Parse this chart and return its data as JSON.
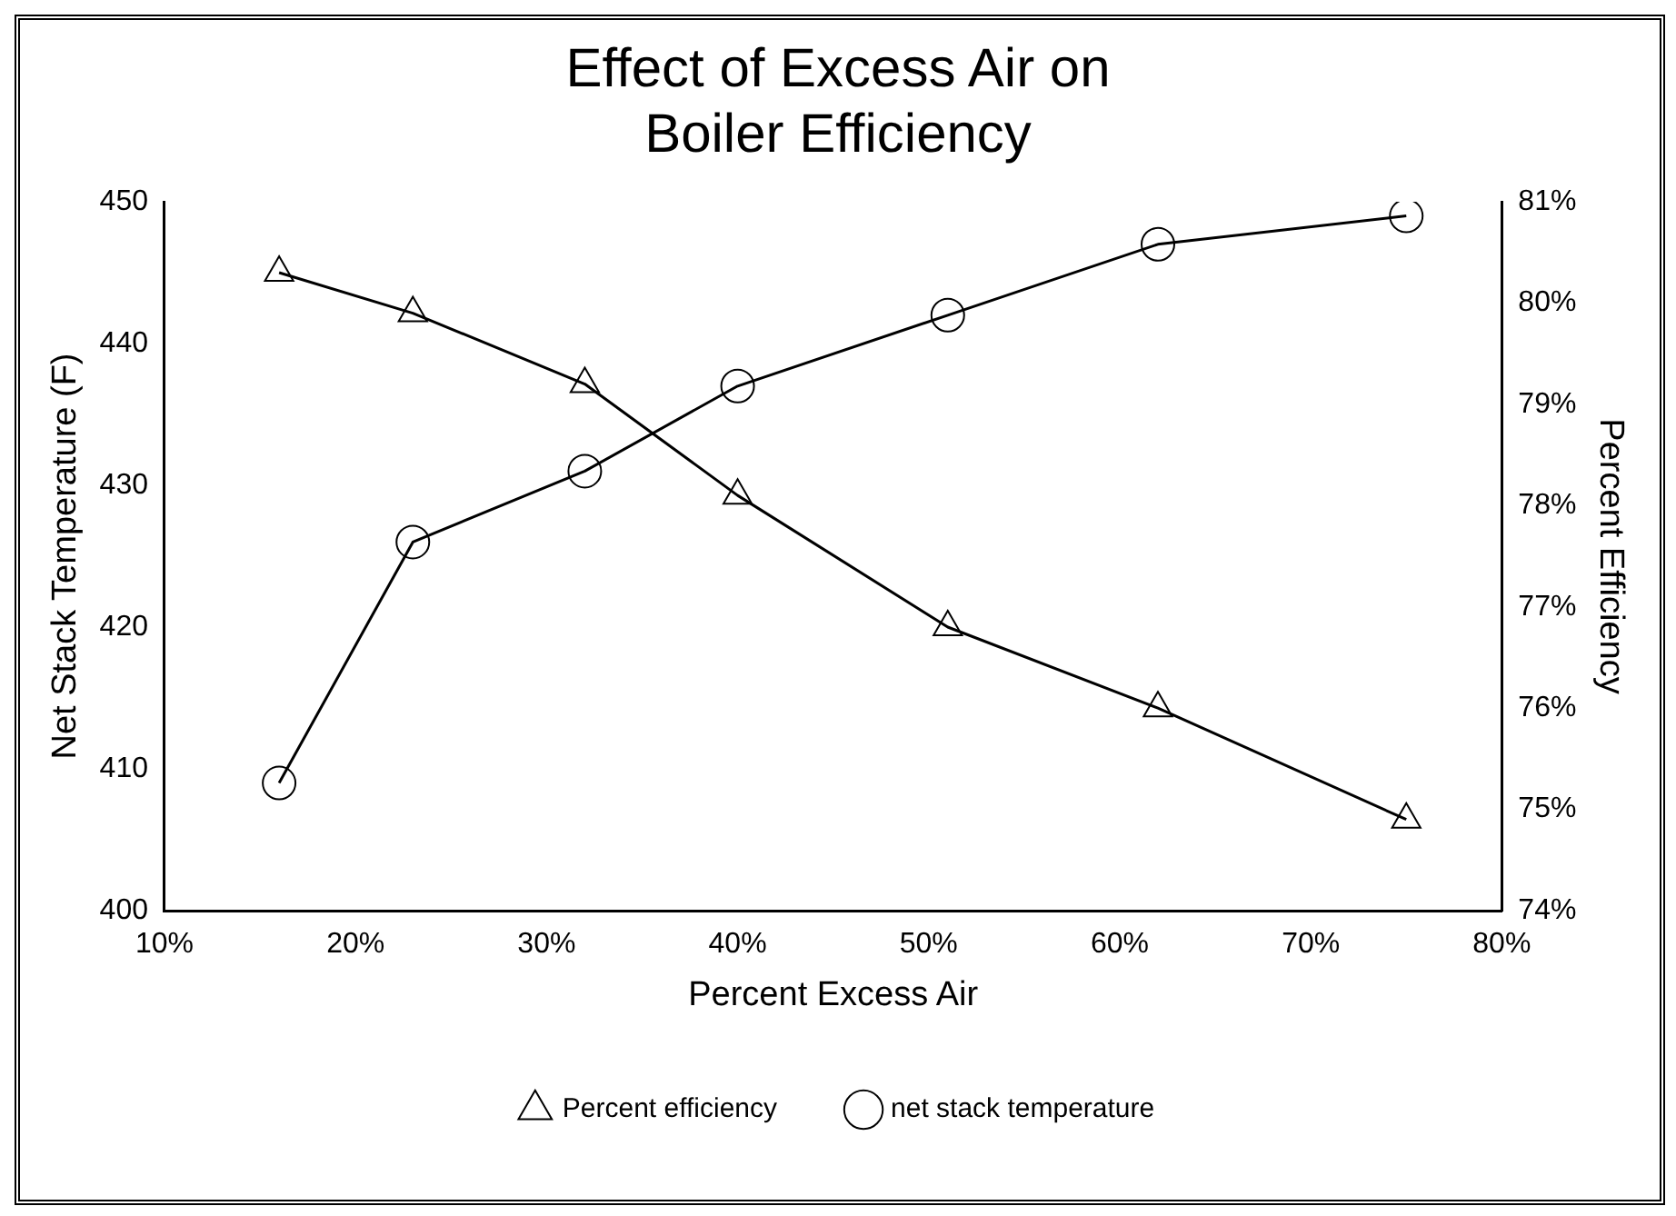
{
  "chart_data": {
    "type": "line",
    "title": "Effect of Excess Air on\nBoiler Efficiency",
    "xlabel": "Percent Excess Air",
    "ylabel": "Net Stack Temperature (F)",
    "y2label": "Percent Efficiency",
    "x": [
      16,
      23,
      32,
      40,
      51,
      62,
      75
    ],
    "series": [
      {
        "name": "Percent efficiency",
        "color": "#000000",
        "axis": "y2",
        "marker": "triangle",
        "values": [
          80.3,
          79.9,
          79.2,
          78.1,
          76.8,
          76.0,
          74.9
        ]
      },
      {
        "name": "net stack temperature",
        "color": "#000000",
        "marker": "circle",
        "values": [
          409,
          426,
          431,
          437,
          442,
          447,
          449
        ]
      }
    ],
    "xlim": [
      10,
      80
    ],
    "xticks": [
      {
        "value": 10,
        "label": "10%"
      },
      {
        "value": 20,
        "label": "20%"
      },
      {
        "value": 30,
        "label": "30%"
      },
      {
        "value": 40,
        "label": "40%"
      },
      {
        "value": 50,
        "label": "50%"
      },
      {
        "value": 60,
        "label": "60%"
      },
      {
        "value": 70,
        "label": "70%"
      },
      {
        "value": 80,
        "label": "80%"
      }
    ],
    "ylim": [
      400,
      450
    ],
    "yticks": [
      400,
      410,
      420,
      430,
      440,
      450
    ],
    "y2lim": [
      74,
      81
    ],
    "y2ticks": [
      {
        "value": 74,
        "label": "74%"
      },
      {
        "value": 75,
        "label": "75%"
      },
      {
        "value": 76,
        "label": "76%"
      },
      {
        "value": 77,
        "label": "77%"
      },
      {
        "value": 78,
        "label": "78%"
      },
      {
        "value": 79,
        "label": "79%"
      },
      {
        "value": 80,
        "label": "80%"
      },
      {
        "value": 81,
        "label": "81%"
      }
    ],
    "grid": false,
    "legend": "bottom",
    "line_style": "solid"
  }
}
